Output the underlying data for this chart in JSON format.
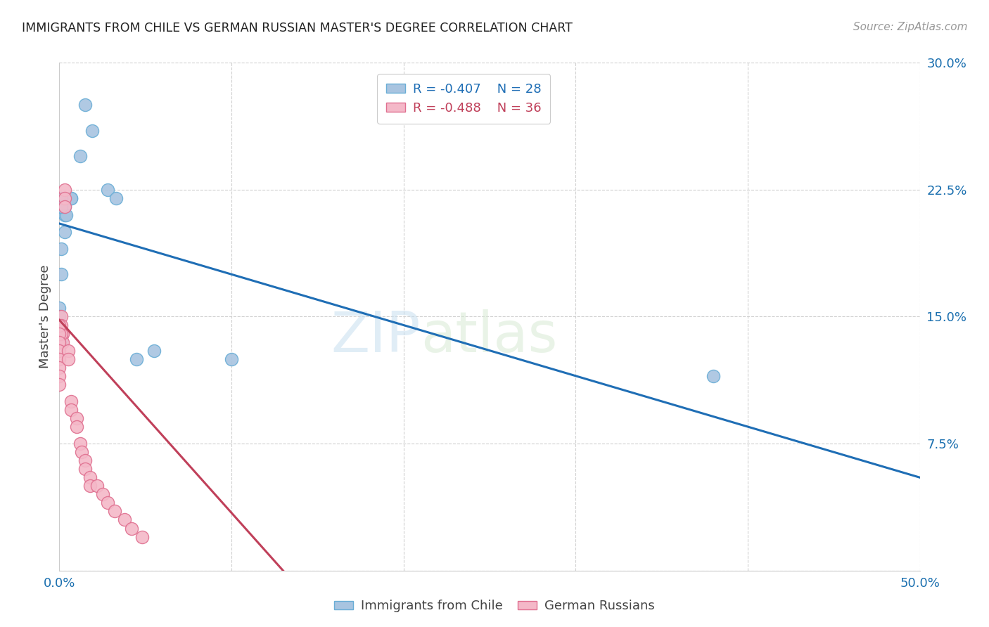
{
  "title": "IMMIGRANTS FROM CHILE VS GERMAN RUSSIAN MASTER'S DEGREE CORRELATION CHART",
  "source": "Source: ZipAtlas.com",
  "ylabel": "Master's Degree",
  "x_min": 0.0,
  "x_max": 0.5,
  "y_min": 0.0,
  "y_max": 0.3,
  "x_ticks": [
    0.0,
    0.1,
    0.2,
    0.3,
    0.4,
    0.5
  ],
  "x_tick_labels": [
    "0.0%",
    "",
    "",
    "",
    "",
    "50.0%"
  ],
  "y_ticks": [
    0.0,
    0.075,
    0.15,
    0.225,
    0.3
  ],
  "y_tick_labels": [
    "",
    "7.5%",
    "15.0%",
    "22.5%",
    "30.0%"
  ],
  "blue_R": "-0.407",
  "blue_N": "28",
  "pink_R": "-0.488",
  "pink_N": "36",
  "blue_color": "#a8c4e0",
  "blue_edge": "#6aaed6",
  "pink_color": "#f4b8c8",
  "pink_edge": "#e07090",
  "blue_line_color": "#1f6eb5",
  "pink_line_color": "#c0405a",
  "watermark_zip": "ZIP",
  "watermark_atlas": "atlas",
  "blue_scatter_x": [
    0.015,
    0.019,
    0.012,
    0.007,
    0.007,
    0.003,
    0.003,
    0.004,
    0.003,
    0.001,
    0.001,
    0.001,
    0.001,
    0.0,
    0.0,
    0.0,
    0.0,
    0.001,
    0.001,
    0.028,
    0.033,
    0.045,
    0.055,
    0.1,
    0.38
  ],
  "blue_scatter_y": [
    0.275,
    0.26,
    0.245,
    0.22,
    0.22,
    0.215,
    0.21,
    0.21,
    0.2,
    0.19,
    0.175,
    0.14,
    0.135,
    0.155,
    0.15,
    0.14,
    0.135,
    0.22,
    0.215,
    0.225,
    0.22,
    0.125,
    0.13,
    0.125,
    0.115
  ],
  "pink_scatter_x": [
    0.003,
    0.003,
    0.003,
    0.002,
    0.002,
    0.001,
    0.001,
    0.001,
    0.0,
    0.0,
    0.0,
    0.0,
    0.0,
    0.0,
    0.0,
    0.0,
    0.005,
    0.005,
    0.007,
    0.007,
    0.01,
    0.01,
    0.012,
    0.013,
    0.015,
    0.015,
    0.018,
    0.018,
    0.022,
    0.025,
    0.028,
    0.032,
    0.038,
    0.042,
    0.048
  ],
  "pink_scatter_y": [
    0.225,
    0.22,
    0.215,
    0.14,
    0.135,
    0.15,
    0.145,
    0.14,
    0.145,
    0.14,
    0.135,
    0.13,
    0.125,
    0.12,
    0.115,
    0.11,
    0.13,
    0.125,
    0.1,
    0.095,
    0.09,
    0.085,
    0.075,
    0.07,
    0.065,
    0.06,
    0.055,
    0.05,
    0.05,
    0.045,
    0.04,
    0.035,
    0.03,
    0.025,
    0.02
  ],
  "blue_line_x": [
    0.0,
    0.5
  ],
  "blue_line_y": [
    0.205,
    0.055
  ],
  "pink_line_x": [
    0.0,
    0.13
  ],
  "pink_line_y": [
    0.148,
    0.0
  ]
}
